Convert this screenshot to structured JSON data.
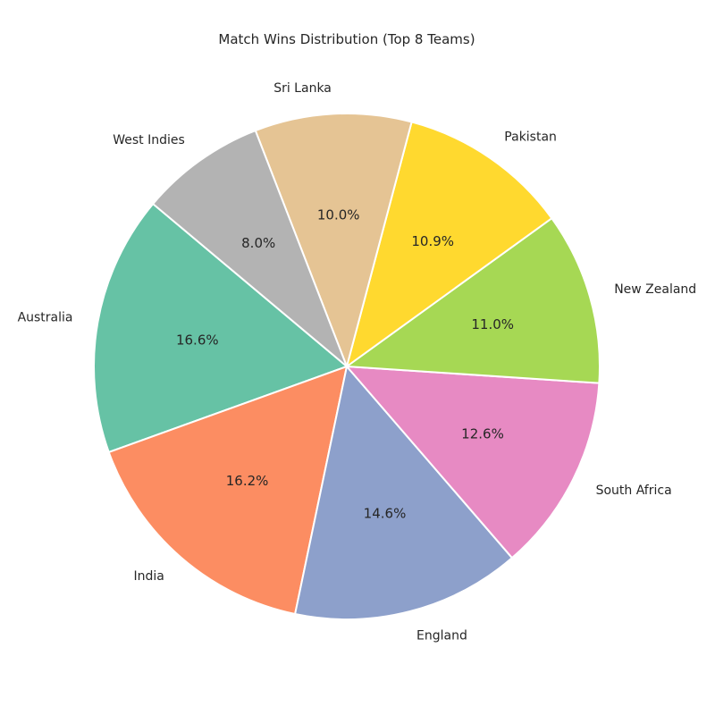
{
  "chart_data": {
    "type": "pie",
    "title": "Match Wins Distribution (Top 8 Teams)",
    "categories": [
      "Australia",
      "India",
      "England",
      "South Africa",
      "New Zealand",
      "Pakistan",
      "Sri Lanka",
      "West Indies"
    ],
    "values": [
      16.6,
      16.2,
      14.6,
      12.6,
      11.0,
      10.9,
      10.0,
      8.0
    ],
    "value_labels": [
      "16.6%",
      "16.2%",
      "14.6%",
      "12.6%",
      "11.0%",
      "10.9%",
      "10.0%",
      "8.0%"
    ],
    "colors": [
      "#66c2a5",
      "#fc8d62",
      "#8da0cb",
      "#e78ac3",
      "#a6d854",
      "#ffd92f",
      "#e5c494",
      "#b3b3b3"
    ],
    "start_angle_deg": 140,
    "direction": "counterclockwise",
    "legend": "none"
  }
}
